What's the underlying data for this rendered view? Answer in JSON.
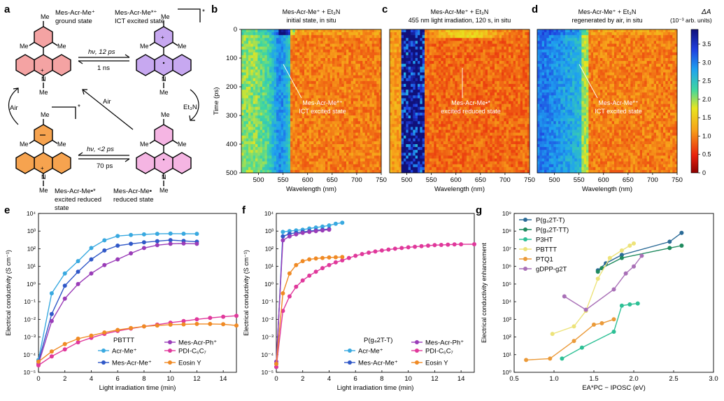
{
  "figure": {
    "panel_letters": {
      "a": "a",
      "b": "b",
      "c": "c",
      "d": "d",
      "e": "e",
      "f": "f",
      "g": "g"
    }
  },
  "scheme": {
    "state_gs": {
      "line1": "Mes-Acr-Me⁺",
      "line2": "ground state"
    },
    "state_ict": {
      "line1": "Mes-Acr-Me*⁺",
      "line2": "ICT excited state"
    },
    "state_red": {
      "line1": "Mes-Acr-Me•",
      "line2": "reduced state"
    },
    "state_exred": {
      "line1": "Mes-Acr-Me•*",
      "line2": "excited reduced",
      "line3": "state"
    },
    "arrow_top": {
      "fwd": "hν, 12 ps",
      "back": "1 ns"
    },
    "arrow_bottom": {
      "fwd": "hν, <2 ps",
      "back": "70 ps"
    },
    "air_diag": "Air",
    "air_left": "Air",
    "et3n": "Et₃N",
    "me": "Me",
    "n": "N",
    "plus": "+",
    "star": "*",
    "colors": {
      "gs": "#f4a3a3",
      "ict": "#c7a8f0",
      "red": "#f5b5e3",
      "exred": "#f6a34f"
    }
  },
  "heatmaps": {
    "ylabel": "Time (ps)",
    "xlabel": "Wavelength (nm)",
    "x_ticks": [
      500,
      550,
      600,
      650,
      700,
      750
    ],
    "y_ticks": [
      0,
      100,
      200,
      300,
      400,
      500
    ],
    "x_range": [
      465,
      750
    ],
    "y_range": [
      0,
      500
    ],
    "panels": [
      {
        "title1": "Mes-Acr-Me⁺ + Et₃N",
        "title2": "initial state, in situ",
        "ann1": "Mes-Acr-Me*⁺",
        "ann2": "ICT excited state",
        "mode": "b"
      },
      {
        "title1": "Mes-Acr-Me⁺ + Et₃N",
        "title2": "455 nm light irradiation, 120 s, in situ",
        "ann1": "Mes-Acr-Me•*",
        "ann2": "excited reduced state",
        "mode": "c"
      },
      {
        "title1": "Mes-Acr-Me⁺ + Et₃N",
        "title2": "regenerated by air, in situ",
        "ann1": "Mes-Acr-Me*⁺",
        "ann2": "ICT excited state",
        "mode": "d"
      }
    ],
    "colorbar": {
      "title": "ΔA",
      "unit": "(10⁻³ arb. units)",
      "ticks": [
        "0",
        "0.5",
        "1.0",
        "1.5",
        "2.0",
        "2.5",
        "3.0",
        "3.5"
      ],
      "range": [
        0,
        3.9
      ]
    }
  },
  "chart_data": [
    {
      "type": "line",
      "panel": "e",
      "yscale": "log",
      "legend_title": "PBTTT",
      "xlabel": "Light irradiation time (min)",
      "ylabel": "Electrical conductivity (S cm⁻¹)",
      "xlim": [
        0,
        15
      ],
      "ylim": [
        -5,
        4
      ],
      "x_ticks": [
        0,
        2,
        4,
        6,
        8,
        10,
        12,
        14
      ],
      "y_ticks": [
        "10⁻⁵",
        "10⁻⁴",
        "10⁻³",
        "10⁻²",
        "10⁻¹",
        "10⁰",
        "10¹",
        "10²",
        "10³",
        "10⁴"
      ],
      "series": [
        {
          "name": "Acr-Me⁺",
          "color": "#39a9e0",
          "x": [
            0,
            1,
            2,
            3,
            4,
            5,
            6,
            7,
            8,
            9,
            10,
            11,
            12
          ],
          "y": [
            5e-05,
            0.3,
            4,
            20,
            110,
            300,
            530,
            600,
            650,
            700,
            720,
            710,
            700
          ]
        },
        {
          "name": "Mes-Acr-Me⁺",
          "color": "#3058c8",
          "x": [
            0,
            1,
            2,
            3,
            4,
            5,
            6,
            7,
            8,
            9,
            10,
            11,
            12
          ],
          "y": [
            4e-05,
            0.02,
            0.8,
            5,
            25,
            80,
            150,
            190,
            230,
            270,
            310,
            280,
            250
          ]
        },
        {
          "name": "Mes-Acr-Ph⁺",
          "color": "#9a3cb8",
          "x": [
            0,
            1,
            2,
            3,
            4,
            5,
            6,
            7,
            8,
            9,
            10,
            11,
            12
          ],
          "y": [
            3e-05,
            0.008,
            0.15,
            1,
            4,
            12,
            25,
            55,
            110,
            160,
            190,
            200,
            190
          ]
        },
        {
          "name": "PDI-C₆C₇",
          "color": "#e0389b",
          "x": [
            0,
            1,
            2,
            3,
            4,
            5,
            6,
            7,
            8,
            9,
            10,
            11,
            12,
            13,
            14,
            15
          ],
          "y": [
            2.5e-05,
            8e-05,
            0.0002,
            0.0005,
            0.0009,
            0.0015,
            0.0022,
            0.003,
            0.004,
            0.005,
            0.0065,
            0.008,
            0.01,
            0.012,
            0.014,
            0.016
          ]
        },
        {
          "name": "Eosin Y",
          "color": "#f08a24",
          "x": [
            0,
            1,
            2,
            3,
            4,
            5,
            6,
            7,
            8,
            9,
            10,
            11,
            12,
            13,
            14,
            15
          ],
          "y": [
            4e-05,
            0.00015,
            0.0004,
            0.0008,
            0.0012,
            0.0018,
            0.0025,
            0.0032,
            0.004,
            0.0045,
            0.005,
            0.0052,
            0.0055,
            0.0055,
            0.0053,
            0.0045
          ]
        }
      ]
    },
    {
      "type": "line",
      "panel": "f",
      "yscale": "log",
      "legend_title": "P(g₄2T-T)",
      "xlabel": "Light irradiation time (min)",
      "ylabel": "Electrical conductivity (S cm⁻¹)",
      "xlim": [
        0,
        15
      ],
      "ylim": [
        -5,
        4
      ],
      "x_ticks": [
        0,
        2,
        4,
        6,
        8,
        10,
        12,
        14
      ],
      "y_ticks": [
        "10⁻⁵",
        "10⁻⁴",
        "10⁻³",
        "10⁻²",
        "10⁻¹",
        "10⁰",
        "10¹",
        "10²",
        "10³",
        "10⁴"
      ],
      "series": [
        {
          "name": "Acr-Me⁺",
          "color": "#39a9e0",
          "x": [
            0,
            0.5,
            1,
            1.5,
            2,
            2.5,
            3,
            3.5,
            4,
            4.5,
            5
          ],
          "y": [
            2e-05,
            900,
            1000,
            1100,
            1200,
            1400,
            1600,
            1800,
            2100,
            2600,
            3000
          ]
        },
        {
          "name": "Mes-Acr-Me⁺",
          "color": "#3058c8",
          "x": [
            0,
            0.5,
            1,
            1.5,
            2,
            2.5,
            3,
            3.5,
            4
          ],
          "y": [
            3e-05,
            500,
            700,
            800,
            900,
            1000,
            1100,
            1200,
            1300
          ]
        },
        {
          "name": "Mes-Acr-Ph⁺",
          "color": "#9a3cb8",
          "x": [
            0,
            0.5,
            1,
            1.5,
            2,
            2.5,
            3,
            3.5,
            4
          ],
          "y": [
            4e-05,
            300,
            500,
            650,
            800,
            900,
            1000,
            1100,
            1200
          ]
        },
        {
          "name": "PDI-C₆C₇",
          "color": "#e0389b",
          "x": [
            0,
            0.5,
            1,
            1.5,
            2,
            2.5,
            3,
            3.5,
            4,
            4.5,
            5,
            5.5,
            6,
            6.5,
            7,
            7.5,
            8,
            8.5,
            9,
            9.5,
            10,
            10.5,
            11,
            11.5,
            12,
            12.5,
            13,
            13.5,
            14,
            15
          ],
          "y": [
            2e-05,
            0.03,
            0.2,
            0.7,
            1.6,
            3,
            5,
            8,
            12,
            17,
            22,
            30,
            40,
            50,
            60,
            70,
            80,
            90,
            100,
            110,
            120,
            130,
            140,
            150,
            160,
            165,
            170,
            175,
            178,
            180
          ]
        },
        {
          "name": "Eosin Y",
          "color": "#f08a24",
          "x": [
            0,
            0.5,
            1,
            1.5,
            2,
            2.5,
            3,
            3.5,
            4,
            4.5,
            5
          ],
          "y": [
            3e-05,
            0.3,
            4,
            12,
            20,
            25,
            28,
            30,
            32,
            33,
            34
          ]
        }
      ]
    },
    {
      "type": "line",
      "panel": "g",
      "yscale": "log",
      "xlabel": "EA*PC − IPOSC (eV)",
      "ylabel": "Electrical conductivity enhancement",
      "xlim": [
        0.5,
        3.0
      ],
      "ylim": [
        0,
        9
      ],
      "x_ticks": [
        "0.5",
        "1.0",
        "1.5",
        "2.0",
        "2.5",
        "3.0"
      ],
      "y_ticks": [
        "10⁰",
        "10¹",
        "10²",
        "10³",
        "10⁴",
        "10⁵",
        "10⁶",
        "10⁷",
        "10⁸",
        "10⁹"
      ],
      "series": [
        {
          "name": "P(g₄2T-T)",
          "color": "#2a6a96",
          "x": [
            1.55,
            1.65,
            1.85,
            2.45,
            2.6
          ],
          "y": [
            600000,
            1500000,
            4500000,
            25000000,
            80000000
          ]
        },
        {
          "name": "P(g₄2T-TT)",
          "color": "#1f8a5e",
          "x": [
            1.55,
            1.6,
            1.85,
            2.45,
            2.6
          ],
          "y": [
            500000,
            800000,
            3000000,
            11000000,
            15000000
          ]
        },
        {
          "name": "P3HT",
          "color": "#2dc095",
          "x": [
            1.1,
            1.35,
            1.75,
            1.85,
            1.95,
            2.05
          ],
          "y": [
            6,
            25,
            200,
            6000,
            7000,
            8000
          ]
        },
        {
          "name": "PBTTT",
          "color": "#ede37a",
          "x": [
            0.98,
            1.25,
            1.4,
            1.55,
            1.7,
            1.85,
            1.95,
            2.0
          ],
          "y": [
            150,
            400,
            3000,
            200000,
            3000000,
            8000000,
            15000000,
            20000000
          ]
        },
        {
          "name": "PTQ1",
          "color": "#eb9a39",
          "x": [
            0.65,
            0.95,
            1.25,
            1.5,
            1.6,
            1.75
          ],
          "y": [
            5,
            6,
            60,
            500,
            600,
            1000
          ]
        },
        {
          "name": "gDPP-g2T",
          "color": "#a970b7",
          "x": [
            1.13,
            1.4,
            1.75,
            1.9,
            2.0,
            2.1
          ],
          "y": [
            20000,
            3500,
            50000,
            400000,
            1000000,
            4000000
          ]
        }
      ]
    }
  ]
}
